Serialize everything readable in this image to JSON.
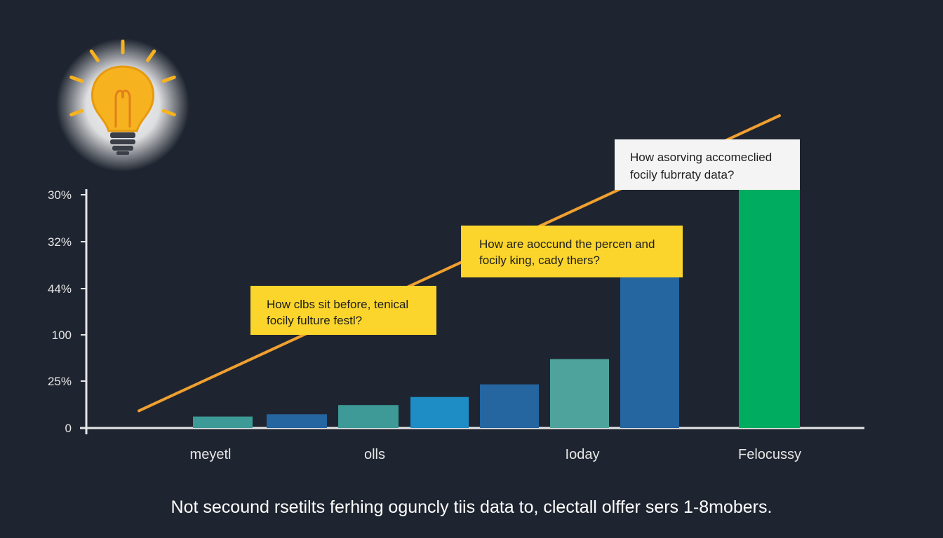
{
  "chart_data": {
    "type": "bar",
    "y_tick_labels": [
      "30%",
      "32%",
      "44%",
      "100",
      "25%",
      "0"
    ],
    "x_tick_labels": [
      "meyetl",
      "olls",
      "Ioday",
      "Felocussy"
    ],
    "bars": [
      {
        "value": 0.5,
        "color": "#3d9a97"
      },
      {
        "value": 0.6,
        "color": "#2565a0"
      },
      {
        "value": 1.0,
        "color": "#3d9a97"
      },
      {
        "value": 1.35,
        "color": "#1e8dc6"
      },
      {
        "value": 1.9,
        "color": "#2565a0"
      },
      {
        "value": 3.0,
        "color": "#4ea49c"
      },
      {
        "value": 7.2,
        "color": "#2565a0"
      },
      {
        "value": 10.4,
        "color": "#00ac5f"
      }
    ],
    "trend_line": {
      "start": 0.75,
      "end": 13.6,
      "color": "#f0a030"
    },
    "callouts": [
      {
        "lines": [
          "How clbs sit before, tenical",
          "focily fulture festl?"
        ],
        "style": "yellow"
      },
      {
        "lines": [
          "How are aoccund the percen and",
          "focily king, cady thers?"
        ],
        "style": "yellow"
      },
      {
        "lines": [
          "How asorving accomeclied",
          "focily fubrraty data?"
        ],
        "style": "white"
      }
    ],
    "axis_color": "#e6e6e6",
    "grid": false
  },
  "caption": "Not secound rsetilts ferhing oguncly tiis data to, clectall olffer sers 1-8mobers.",
  "colors": {
    "background": "#1f2530",
    "callout_yellow": "#fbd52c",
    "callout_white": "#f4f4f4",
    "bulb": "#f7b21f"
  },
  "icons": {
    "bulb": "lightbulb-icon"
  }
}
